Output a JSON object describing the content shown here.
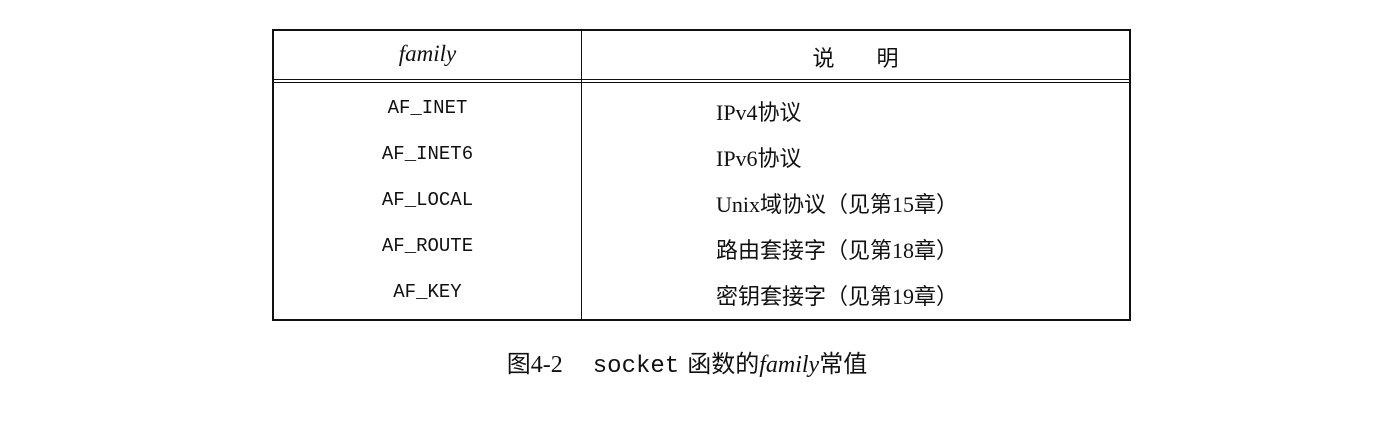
{
  "table": {
    "headers": [
      "family",
      "说明"
    ],
    "rows": [
      {
        "family": "AF_INET",
        "desc": "IPv4协议"
      },
      {
        "family": "AF_INET6",
        "desc": "IPv6协议"
      },
      {
        "family": "AF_LOCAL",
        "desc": "Unix域协议（见第15章）"
      },
      {
        "family": "AF_ROUTE",
        "desc": "路由套接字（见第18章）"
      },
      {
        "family": "AF_KEY",
        "desc": "密钥套接字（见第19章）"
      }
    ]
  },
  "caption": {
    "label": "图4-2",
    "code": "socket",
    "text1": "函数的",
    "italic": "family",
    "text2": "常值"
  }
}
